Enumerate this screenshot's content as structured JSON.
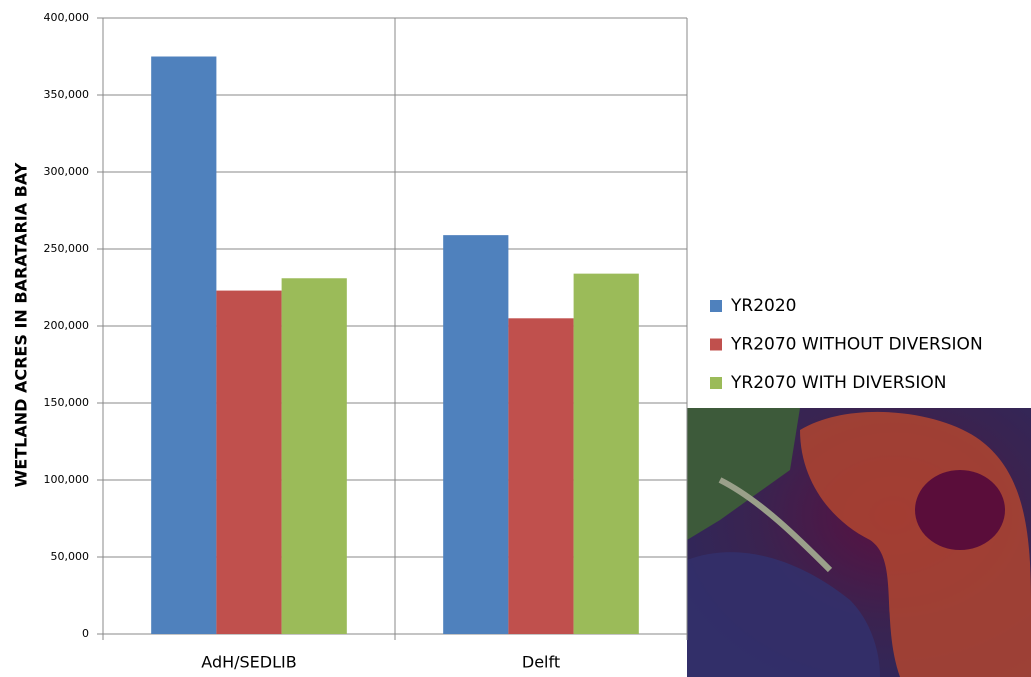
{
  "chart_data": {
    "type": "bar",
    "ylabel": "WETLAND ACRES  IN BARATARIA BAY",
    "categories": [
      "AdH/SEDLIB",
      "Delft"
    ],
    "series": [
      {
        "name": "YR2020",
        "color": "#4f81bd",
        "values": [
          375000,
          259000
        ]
      },
      {
        "name": "YR2070 WITHOUT DIVERSION",
        "color": "#c0504d",
        "values": [
          223000,
          205000
        ]
      },
      {
        "name": "YR2070 WITH DIVERSION",
        "color": "#9bbb59",
        "values": [
          231000,
          234000
        ]
      }
    ],
    "ylim": [
      0,
      400000
    ],
    "yticks": [
      0,
      {
        "value": 50000,
        "label": "50,000"
      },
      {
        "value": 100000,
        "label": "100,000"
      },
      {
        "value": 150000,
        "label": "150,000"
      },
      {
        "value": 200000,
        "label": "200,000"
      },
      {
        "value": 250000,
        "label": "250,000"
      },
      {
        "value": 300000,
        "label": "300,000"
      },
      {
        "value": 350000,
        "label": "350,000"
      },
      {
        "value": 400000,
        "label": "400,000"
      }
    ],
    "grid": true,
    "legend": "right"
  }
}
